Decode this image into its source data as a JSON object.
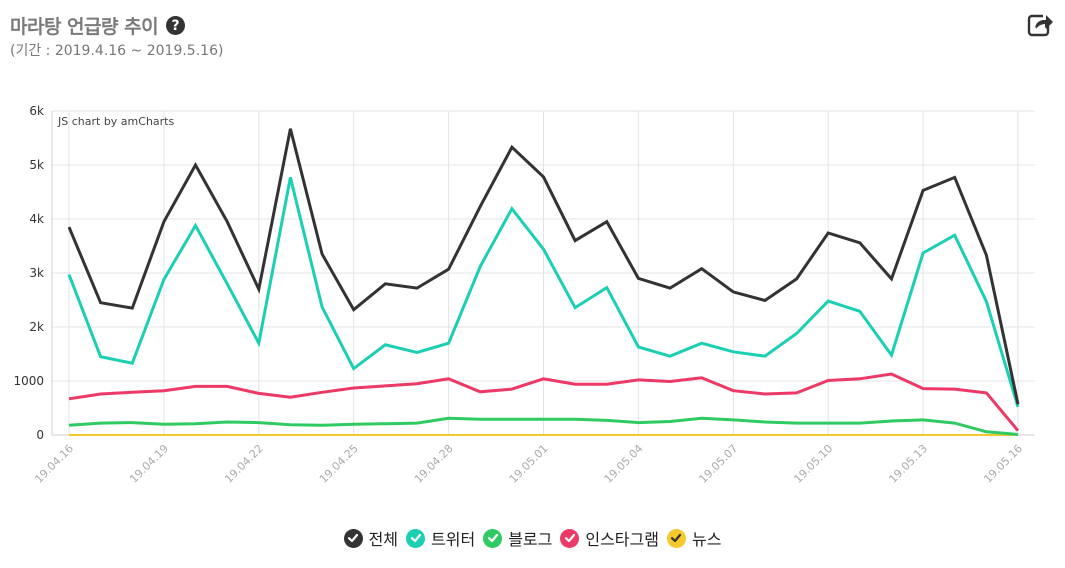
{
  "header": {
    "title": "마라탕 언급량 추이",
    "subtitle": "(기간 : 2019.4.16 ~ 2019.5.16)",
    "help_icon": "question-circle-icon",
    "share_icon": "share-icon"
  },
  "chart_data": {
    "type": "line",
    "credit": "JS chart by amCharts",
    "x": [
      "19.04.16",
      "19.04.17",
      "19.04.18",
      "19.04.19",
      "19.04.20",
      "19.04.21",
      "19.04.22",
      "19.04.23",
      "19.04.24",
      "19.04.25",
      "19.04.26",
      "19.04.27",
      "19.04.28",
      "19.04.29",
      "19.04.30",
      "19.05.01",
      "19.05.02",
      "19.05.03",
      "19.05.04",
      "19.05.05",
      "19.05.06",
      "19.05.07",
      "19.05.08",
      "19.05.09",
      "19.05.10",
      "19.05.11",
      "19.05.12",
      "19.05.13",
      "19.05.14",
      "19.05.15",
      "19.05.16"
    ],
    "x_tick_labels": [
      "19.04.16",
      "19.04.19",
      "19.04.22",
      "19.04.25",
      "19.04.28",
      "19.05.01",
      "19.05.04",
      "19.05.07",
      "19.05.10",
      "19.05.13",
      "19.05.16"
    ],
    "y_tick_labels": [
      "0",
      "1000",
      "2k",
      "3k",
      "4k",
      "5k",
      "6k"
    ],
    "ylim": [
      0,
      6000
    ],
    "grid": true,
    "legend_position": "bottom",
    "series": [
      {
        "name": "전체",
        "color": "#333333",
        "values": [
          3850,
          2450,
          2350,
          3950,
          5000,
          3950,
          2700,
          5670,
          3350,
          2320,
          2800,
          2720,
          3070,
          4230,
          5330,
          4780,
          3600,
          3950,
          2900,
          2720,
          3080,
          2650,
          2490,
          2890,
          3740,
          3560,
          2890,
          4530,
          4770,
          3330,
          570
        ]
      },
      {
        "name": "트위터",
        "color": "#1ccfb2",
        "values": [
          2970,
          1450,
          1330,
          2880,
          3880,
          2800,
          1700,
          4770,
          2370,
          1230,
          1670,
          1530,
          1700,
          3120,
          4190,
          3440,
          2360,
          2730,
          1630,
          1460,
          1700,
          1540,
          1460,
          1880,
          2480,
          2290,
          1480,
          3370,
          3700,
          2470,
          520
        ]
      },
      {
        "name": "블로그",
        "color": "#2fcb62",
        "values": [
          180,
          220,
          230,
          200,
          210,
          240,
          230,
          190,
          180,
          200,
          210,
          220,
          310,
          290,
          290,
          290,
          290,
          270,
          230,
          250,
          310,
          280,
          240,
          220,
          220,
          220,
          260,
          280,
          220,
          60,
          10
        ]
      },
      {
        "name": "인스타그램",
        "color": "#ec3965",
        "values": [
          670,
          760,
          790,
          820,
          900,
          900,
          770,
          700,
          790,
          870,
          910,
          950,
          1040,
          800,
          850,
          1040,
          940,
          940,
          1020,
          990,
          1060,
          820,
          760,
          780,
          1010,
          1040,
          1130,
          860,
          850,
          780,
          80
        ]
      },
      {
        "name": "뉴스",
        "color": "#f5c82e",
        "values": [
          0,
          0,
          0,
          0,
          0,
          0,
          0,
          0,
          0,
          0,
          0,
          0,
          0,
          0,
          0,
          0,
          0,
          0,
          0,
          0,
          0,
          0,
          0,
          0,
          0,
          0,
          0,
          0,
          0,
          0,
          0
        ]
      }
    ]
  }
}
